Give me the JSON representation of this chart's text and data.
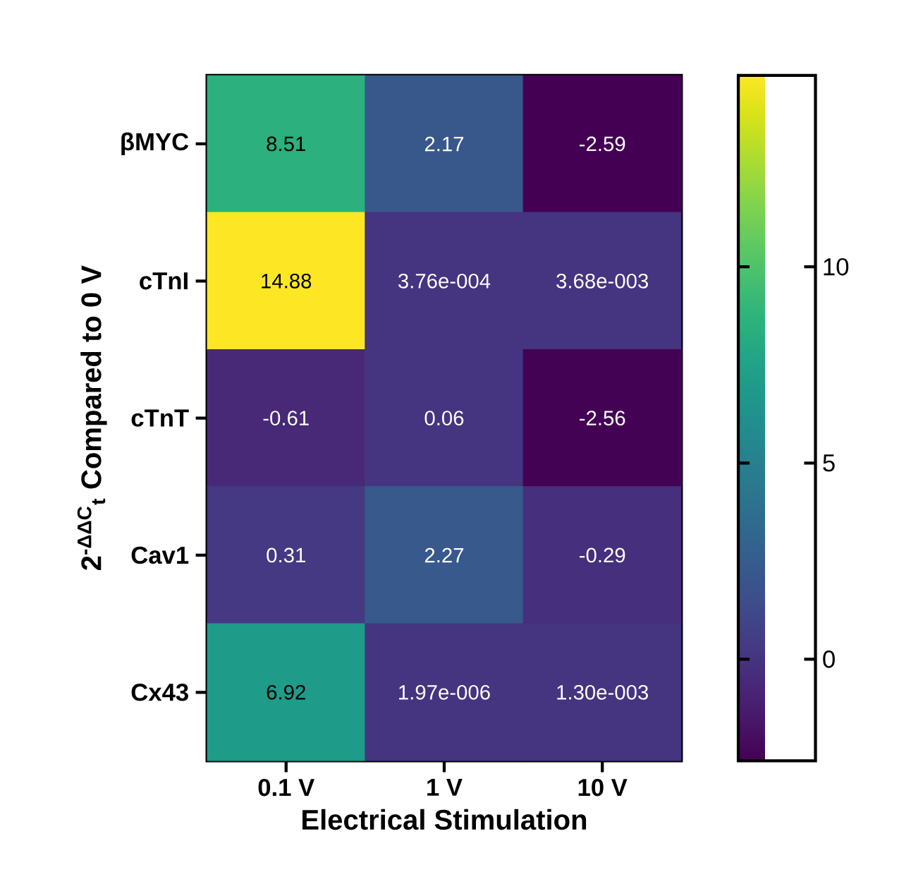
{
  "chart_data": {
    "type": "heatmap",
    "xlabel": "Electrical Stimulation",
    "ylabel": "2$^{-ΔΔC}$$_{t}$ Compared to 0 V",
    "categories": [
      "0.1 V",
      "1 V",
      "10 V"
    ],
    "y_categories": [
      "βMYC",
      "cTnI",
      "cTnT",
      "Cav1",
      "Cx43"
    ],
    "cells": [
      [
        8.51,
        2.17,
        -2.59
      ],
      [
        14.88,
        0.000376,
        0.00368
      ],
      [
        -0.61,
        0.06,
        -2.56
      ],
      [
        0.31,
        2.27,
        -0.29
      ],
      [
        6.92,
        1.97e-06,
        0.0013
      ]
    ],
    "cell_labels": [
      [
        "8.51",
        "2.17",
        "-2.59"
      ],
      [
        "14.88",
        "3.76e-004",
        "3.68e-003"
      ],
      [
        "-0.61",
        "0.06",
        "-2.56"
      ],
      [
        "0.31",
        "2.27",
        "-0.29"
      ],
      [
        "6.92",
        "1.97e-006",
        "1.30e-003"
      ]
    ],
    "clim": [
      -2.59,
      14.88
    ],
    "cticks": [
      0,
      5,
      10
    ]
  }
}
